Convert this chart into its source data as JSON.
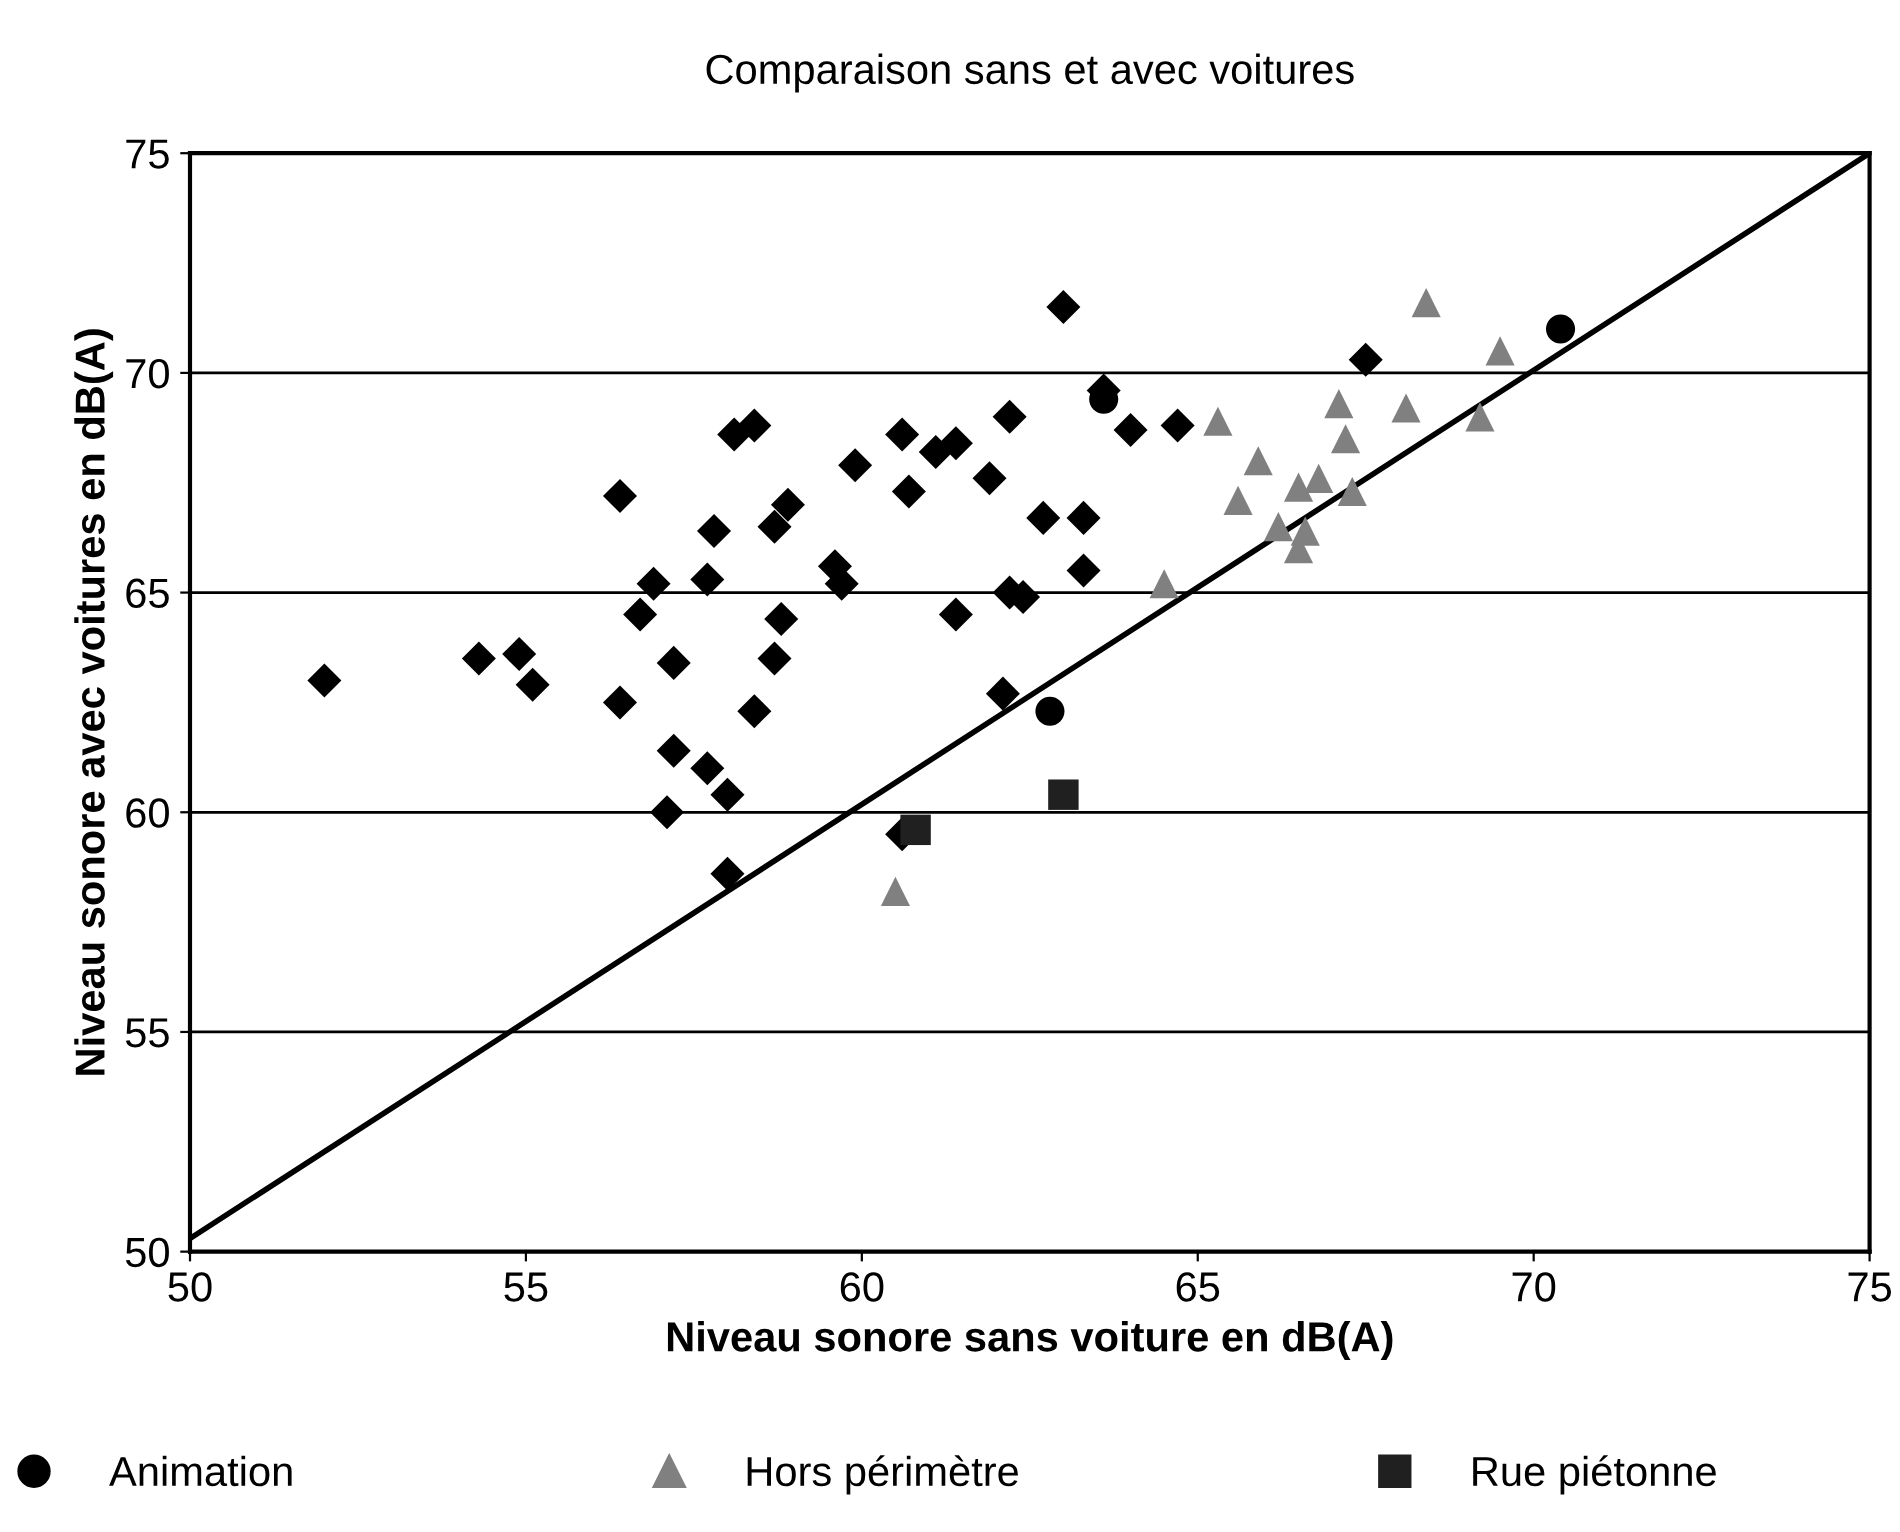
{
  "chart_data": {
    "type": "scatter",
    "title": "Comparaison sans et avec voitures",
    "xlabel": "Niveau sonore sans voiture en dB(A)",
    "ylabel": "Niveau sonore avec voitures en dB(A)",
    "xlim": [
      50,
      75
    ],
    "xticks": [
      50,
      55,
      60,
      65,
      70,
      75
    ],
    "ylim": [
      50,
      75
    ],
    "yticks": [
      50,
      55,
      60,
      65,
      70,
      75
    ],
    "grid": "y",
    "legend": "bottom",
    "series": [
      {
        "color": "#000000",
        "marker": "diamond",
        "x": [
          52.0,
          54.3,
          54.9,
          55.1,
          56.4,
          56.4,
          56.7,
          56.9,
          57.2,
          57.2,
          57.7,
          57.8,
          57.7,
          57.1,
          58.0,
          58.0,
          58.1,
          58.4,
          58.4,
          58.7,
          58.9,
          58.8,
          58.7,
          59.6,
          59.7,
          59.9,
          60.6,
          60.7,
          61.1,
          61.4,
          61.4,
          61.9,
          62.1,
          62.2,
          62.2,
          62.4,
          62.7,
          63.0,
          63.3,
          63.3,
          63.6,
          64.0,
          64.7,
          67.5,
          60.6
        ],
        "values": [
          63.0,
          63.5,
          63.6,
          62.9,
          67.2,
          62.5,
          64.5,
          65.2,
          63.4,
          61.4,
          65.3,
          66.4,
          61.0,
          60.0,
          60.4,
          58.6,
          68.6,
          68.8,
          62.3,
          66.5,
          67.0,
          64.4,
          63.5,
          65.6,
          65.2,
          67.9,
          68.6,
          67.3,
          68.2,
          68.4,
          64.5,
          67.6,
          62.7,
          69.0,
          65.0,
          64.9,
          66.7,
          71.5,
          66.7,
          65.5,
          69.6,
          68.7,
          68.8,
          70.3,
          59.5
        ]
      },
      {
        "name": "Animation",
        "color": "#000000",
        "marker": "circle",
        "x": [
          62.8,
          70.4,
          63.6
        ],
        "values": [
          62.3,
          71.0,
          69.4
        ]
      },
      {
        "name": "Hors périmètre",
        "color": "#808080",
        "marker": "triangle",
        "x": [
          60.5,
          64.5,
          65.3,
          65.6,
          65.9,
          66.2,
          66.5,
          66.5,
          66.6,
          66.8,
          67.1,
          67.2,
          67.3,
          68.1,
          68.4,
          69.2,
          69.5
        ],
        "values": [
          58.2,
          65.2,
          68.9,
          67.1,
          68.0,
          66.5,
          67.4,
          66.0,
          66.4,
          67.6,
          69.3,
          68.5,
          67.3,
          69.2,
          71.6,
          69.0,
          70.5
        ]
      },
      {
        "name": "Rue piétonne",
        "color": "#202020",
        "marker": "square",
        "x": [
          60.8,
          63.0
        ],
        "values": [
          59.6,
          60.4
        ]
      },
      {
        "type": "line",
        "color": "#000000",
        "marker": "none",
        "x": [
          50,
          75
        ],
        "values": [
          50.3,
          75
        ]
      }
    ]
  }
}
